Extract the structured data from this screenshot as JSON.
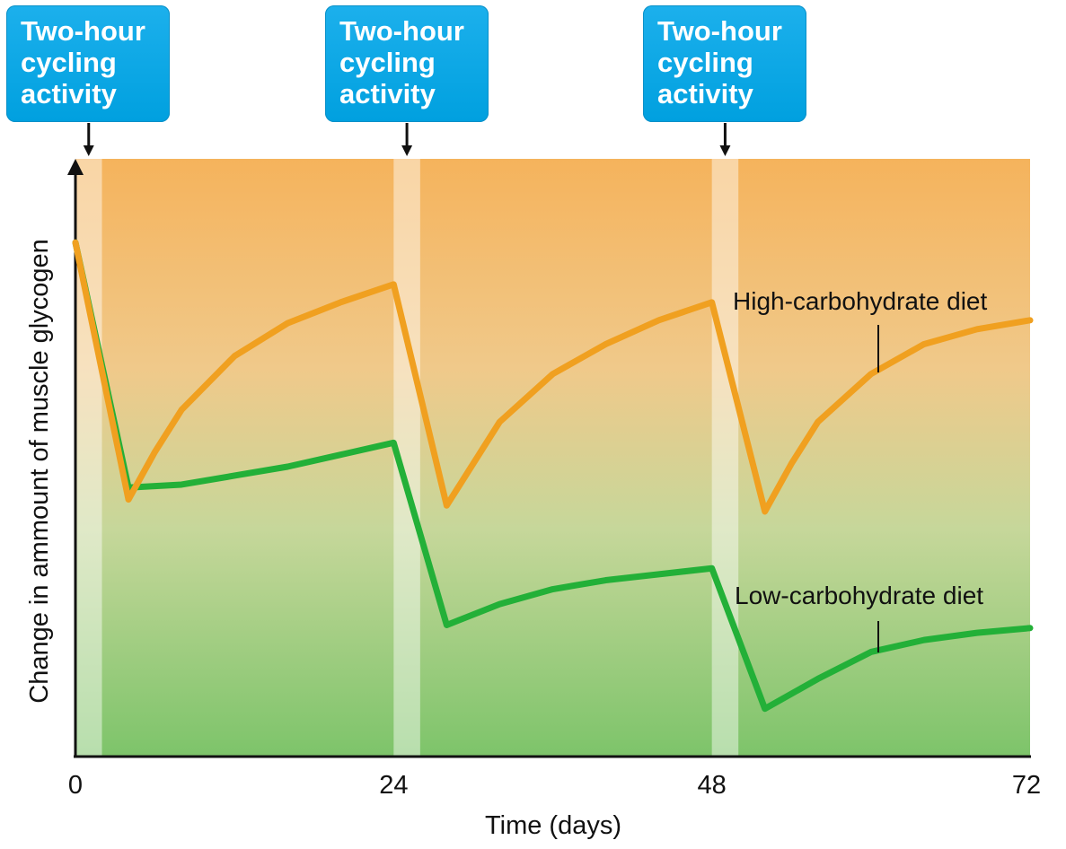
{
  "callouts": [
    {
      "line1": "Two-hour",
      "line2": "cycling",
      "line3": "activity"
    },
    {
      "line1": "Two-hour",
      "line2": "cycling",
      "line3": "activity"
    },
    {
      "line1": "Two-hour",
      "line2": "cycling",
      "line3": "activity"
    }
  ],
  "chart_data": {
    "type": "line",
    "xlabel": "Time (days)",
    "ylabel": "Change in ammount of muscle glycogen",
    "xlim": [
      0,
      72
    ],
    "ylim": [
      0,
      100
    ],
    "x_ticks": [
      "0",
      "24",
      "48",
      "72"
    ],
    "activity_periods": [
      [
        0,
        2
      ],
      [
        24,
        26
      ],
      [
        48,
        50
      ]
    ],
    "colors": {
      "high": "#f0a020",
      "low": "#23b038",
      "band_top": "#f5b35c",
      "band_bottom": "#7dc46a",
      "callout": "#00a6e6"
    },
    "series": [
      {
        "name": "High-carbohydrate diet",
        "color": "#f0a020",
        "points": [
          [
            0,
            86
          ],
          [
            4,
            43
          ],
          [
            6,
            51
          ],
          [
            8,
            58
          ],
          [
            12,
            67
          ],
          [
            16,
            72.5
          ],
          [
            20,
            76
          ],
          [
            24,
            79
          ],
          [
            28,
            42
          ],
          [
            30,
            49
          ],
          [
            32,
            56
          ],
          [
            36,
            64
          ],
          [
            40,
            69
          ],
          [
            44,
            73
          ],
          [
            48,
            76
          ],
          [
            52,
            41
          ],
          [
            54,
            49
          ],
          [
            56,
            56
          ],
          [
            60,
            64
          ],
          [
            64,
            69
          ],
          [
            68,
            71.5
          ],
          [
            72,
            73
          ]
        ]
      },
      {
        "name": "Low-carbohydrate diet",
        "color": "#23b038",
        "points": [
          [
            0,
            86
          ],
          [
            4,
            45
          ],
          [
            8,
            45.5
          ],
          [
            12,
            47
          ],
          [
            16,
            48.5
          ],
          [
            20,
            50.5
          ],
          [
            24,
            52.5
          ],
          [
            28,
            22
          ],
          [
            32,
            25.5
          ],
          [
            36,
            28
          ],
          [
            40,
            29.5
          ],
          [
            44,
            30.5
          ],
          [
            48,
            31.5
          ],
          [
            52,
            8
          ],
          [
            56,
            13
          ],
          [
            60,
            17.5
          ],
          [
            64,
            19.5
          ],
          [
            68,
            20.7
          ],
          [
            72,
            21.5
          ]
        ]
      }
    ]
  }
}
